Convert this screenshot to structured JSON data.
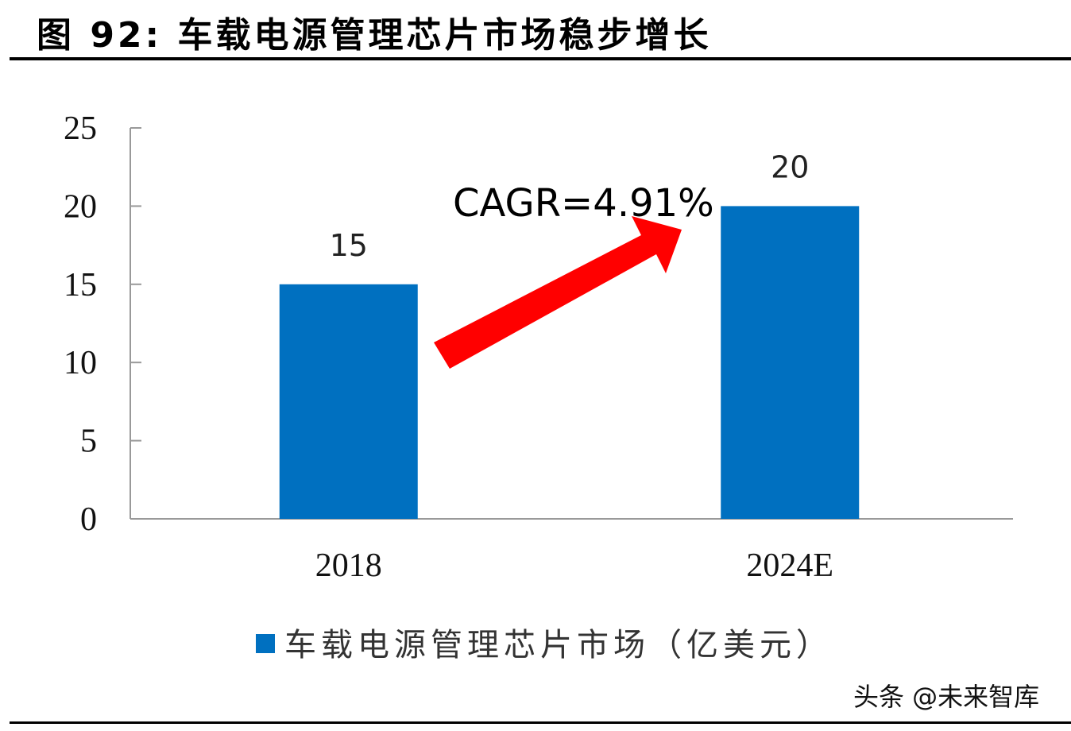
{
  "header": {
    "title": "图 92:  车载电源管理芯片市场稳步增长"
  },
  "chart_data": {
    "type": "bar",
    "categories": [
      "2018",
      "2024E"
    ],
    "series": [
      {
        "name": "车载电源管理芯片市场（亿美元）",
        "values": [
          15,
          20
        ],
        "color": "#0070C0"
      }
    ],
    "data_labels": [
      "15",
      "20"
    ],
    "ylim": [
      0,
      25
    ],
    "yticks": [
      0,
      5,
      10,
      15,
      20,
      25
    ],
    "xlabel": "",
    "ylabel": "",
    "grid": false,
    "legend_position": "bottom",
    "annotation": {
      "text": "CAGR=4.91%",
      "arrow_color": "#FF0000"
    }
  },
  "legend": {
    "label": "车载电源管理芯片市场（亿美元）",
    "color": "#0070C0"
  },
  "watermark": "头条 @未来智库"
}
